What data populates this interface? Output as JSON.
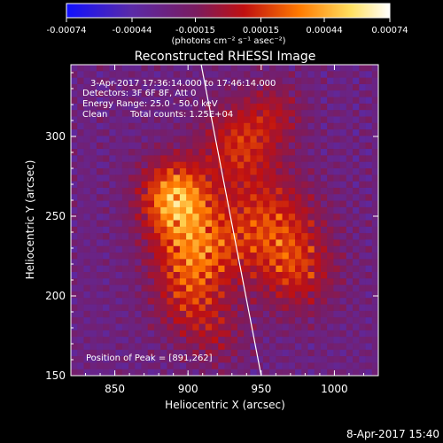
{
  "chart_data": {
    "type": "heatmap",
    "title": "Reconstructed RHESSI Image",
    "xlabel": "Heliocentric X (arcsec)",
    "ylabel": "Heliocentric Y (arcsec)",
    "xlim": [
      820,
      1030
    ],
    "ylim": [
      150,
      345
    ],
    "x_ticks": [
      850,
      900,
      950,
      1000
    ],
    "y_ticks": [
      150,
      200,
      250,
      300
    ],
    "colorbar": {
      "range": [
        -0.00074,
        0.00074
      ],
      "tick_labels": [
        "-0.00074",
        "-0.00044",
        "-0.00015",
        "0.00015",
        "0.00044",
        "0.00074"
      ],
      "tick_values": [
        -0.00074,
        -0.00044,
        -0.00015,
        0.00015,
        0.00044,
        0.00074
      ],
      "unit_label": "(photons cm⁻² s⁻¹ asec⁻²)",
      "colors": [
        "#1010ff",
        "#5a2aa8",
        "#7a1c60",
        "#c01010",
        "#ff7a00",
        "#ffe060",
        "#ffffff"
      ]
    },
    "annotations": {
      "time_range": "3-Apr-2017 17:36:14.000 to 17:46:14.000",
      "detectors": "Detectors: 3F 6F 8F, Att 0",
      "energy_range": "Energy Range: 25.0 - 50.0 keV",
      "clean_label": "Clean",
      "total_counts": "Total counts: 1.25E+04",
      "peak": "Position of Peak = [891,262]"
    },
    "limb_line": {
      "x": [
        909,
        950
      ],
      "y": [
        345,
        150
      ]
    },
    "peak_position": [
      891,
      262
    ],
    "footer_date": "8-Apr-2017 15:40"
  }
}
